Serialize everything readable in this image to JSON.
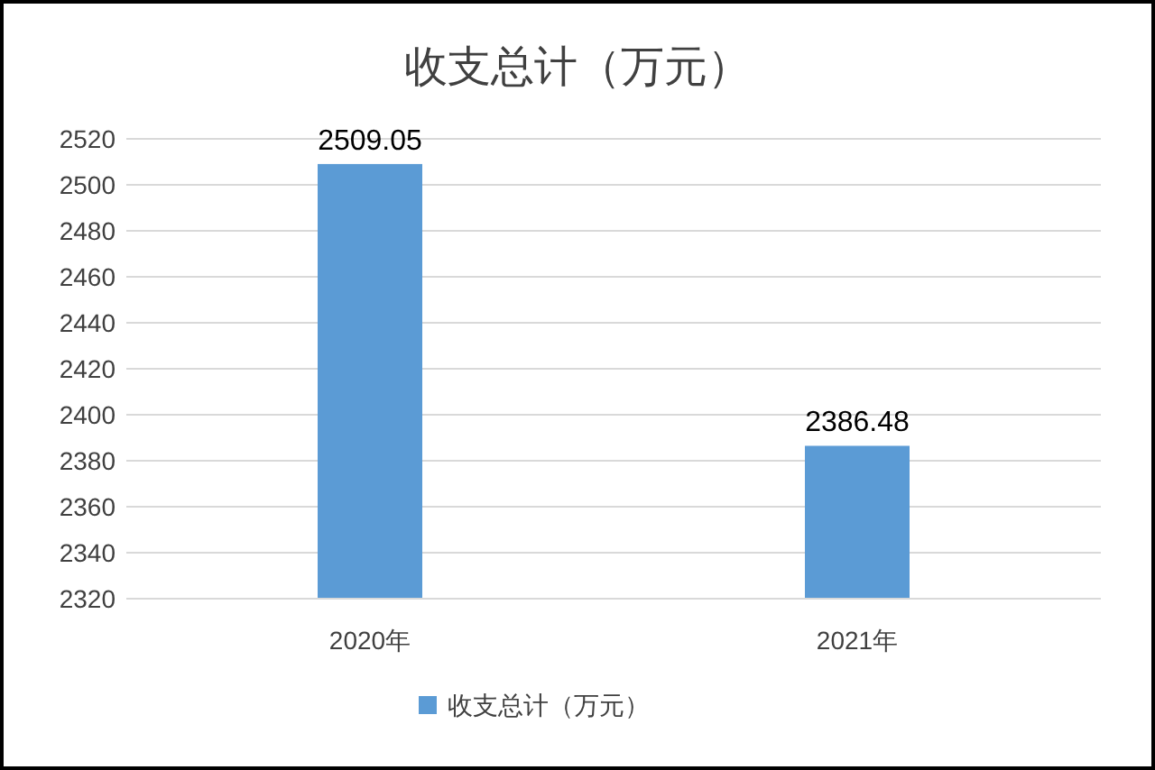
{
  "chart_data": {
    "type": "bar",
    "title": "收支总计（万元）",
    "categories": [
      "2020年",
      "2021年"
    ],
    "series": [
      {
        "name": "收支总计（万元）",
        "color": "#5b9bd5",
        "values": [
          2509.05,
          2386.48
        ]
      }
    ],
    "ylim": [
      2320,
      2520
    ],
    "yticks": [
      2320,
      2340,
      2360,
      2380,
      2400,
      2420,
      2440,
      2460,
      2480,
      2500,
      2520
    ],
    "grid": "y",
    "legend": "bottom",
    "data_labels": true
  }
}
